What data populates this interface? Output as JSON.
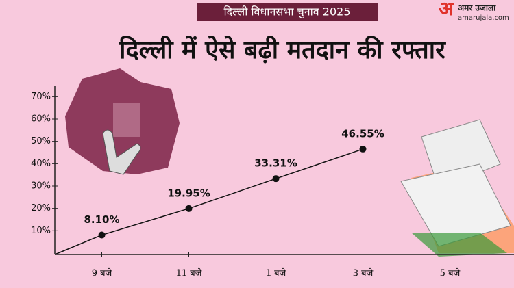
{
  "header": {
    "banner": "दिल्ली विधानसभा चुनाव 2025",
    "logo": "अमर उजाला",
    "logo_url": "amarujala.com"
  },
  "chart_data": {
    "type": "line",
    "title": "दिल्ली में  ऐसे बढ़ी मतदान की रफ्तार",
    "categories": [
      "9 बजे",
      "11 बजे",
      "1 बजे",
      "3 बजे",
      "5 बजे"
    ],
    "values": [
      8.1,
      19.95,
      33.31,
      46.55,
      null
    ],
    "value_labels": [
      "8.10%",
      "19.95%",
      "33.31%",
      "46.55%",
      null
    ],
    "color": "#111111",
    "ylim": [
      0,
      75
    ],
    "yticks": [
      {
        "value": 10,
        "label": "10%"
      },
      {
        "value": 20,
        "label": "20%"
      },
      {
        "value": 30,
        "label": "30%"
      },
      {
        "value": 40,
        "label": "40%"
      },
      {
        "value": 50,
        "label": "50%"
      },
      {
        "value": 60,
        "label": "60%"
      },
      {
        "value": 70,
        "label": "70%"
      }
    ],
    "grid": false
  }
}
